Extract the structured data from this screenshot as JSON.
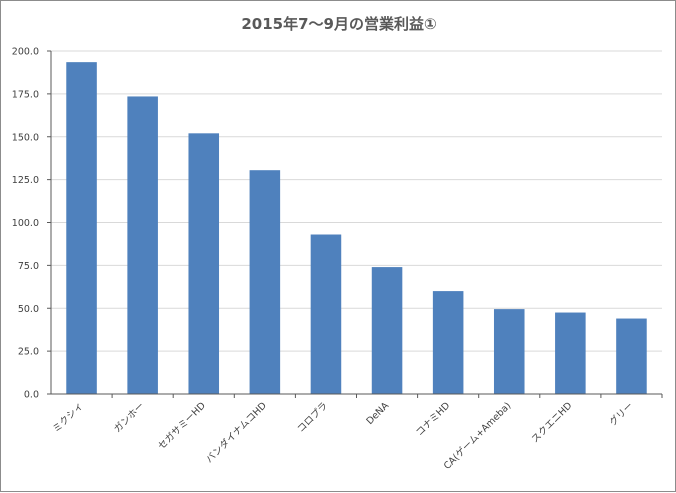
{
  "chart_data": {
    "type": "bar",
    "title": "2015年7～9月の営業利益①",
    "xlabel": "",
    "ylabel": "",
    "ylim": [
      0,
      200
    ],
    "yticks": [
      "0.0",
      "25.0",
      "50.0",
      "75.0",
      "100.0",
      "125.0",
      "150.0",
      "175.0",
      "200.0"
    ],
    "grid": true,
    "legend": "none",
    "bar_color": "#4f81bd",
    "categories": [
      "ミクシィ",
      "ガンホー",
      "セガサミーHD",
      "バンダイナムコHD",
      "コロプラ",
      "DeNA",
      "コナミHD",
      "CA(ゲーム+Ameba)",
      "スクエニHD",
      "グリー"
    ],
    "values": [
      193.5,
      173.5,
      152,
      130.5,
      93,
      74,
      60,
      49.5,
      47.5,
      44
    ]
  }
}
